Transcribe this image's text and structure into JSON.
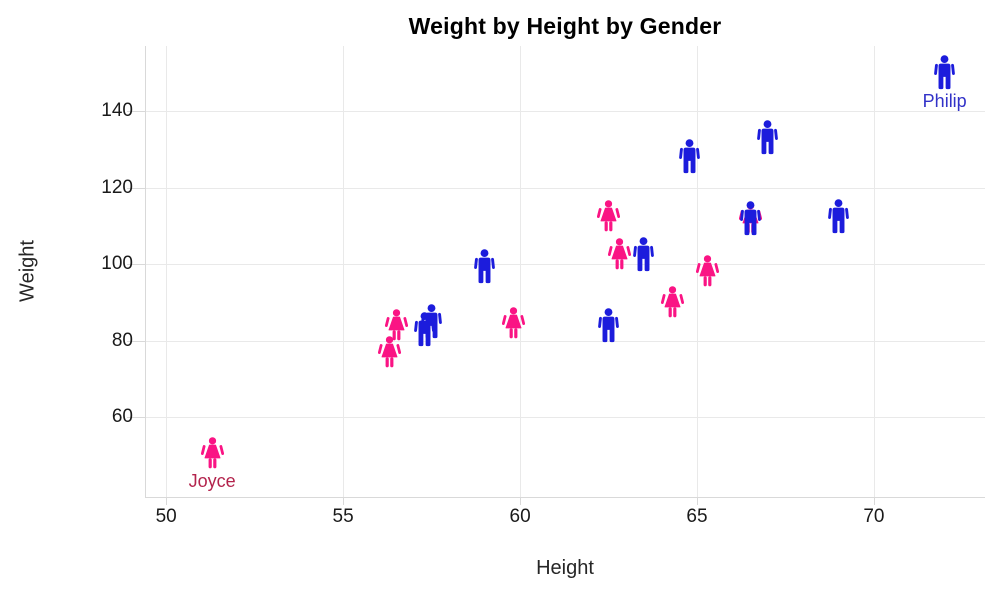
{
  "chart_data": {
    "type": "scatter",
    "title": "Weight by Height by Gender",
    "xlabel": "Height",
    "ylabel": "Weight",
    "x_ticks": [
      50,
      55,
      60,
      65,
      70
    ],
    "y_ticks": [
      60,
      80,
      100,
      120,
      140
    ],
    "xlim": [
      49.4,
      73.14
    ],
    "ylim": [
      39.1,
      157.0
    ],
    "grid": true,
    "legend_position": "none",
    "marker_style": "gender-pictogram",
    "colors": {
      "male": "#1c1cdc",
      "female": "#fa1484",
      "gridline": "#e9e9e9",
      "axis": "#d9d9d9",
      "tick_text": "#1a1a1a"
    },
    "annotation_colors": {
      "Joyce": "#b3234c",
      "Philip": "#3232c8"
    },
    "points": [
      {
        "gender": "M",
        "height": 69.0,
        "weight": 112.5
      },
      {
        "gender": "F",
        "height": 56.5,
        "weight": 84.0
      },
      {
        "gender": "F",
        "height": 65.3,
        "weight": 98.0
      },
      {
        "gender": "F",
        "height": 62.8,
        "weight": 102.5
      },
      {
        "gender": "M",
        "height": 63.5,
        "weight": 102.5
      },
      {
        "gender": "M",
        "height": 57.3,
        "weight": 83.0
      },
      {
        "gender": "F",
        "height": 59.8,
        "weight": 84.5
      },
      {
        "gender": "F",
        "height": 62.5,
        "weight": 112.5
      },
      {
        "gender": "M",
        "height": 62.5,
        "weight": 84.0
      },
      {
        "gender": "M",
        "height": 59.0,
        "weight": 99.5
      },
      {
        "gender": "F",
        "height": 51.3,
        "weight": 50.5,
        "label": "Joyce"
      },
      {
        "gender": "F",
        "height": 64.3,
        "weight": 90.0
      },
      {
        "gender": "F",
        "height": 56.3,
        "weight": 77.0
      },
      {
        "gender": "F",
        "height": 66.5,
        "weight": 112.0
      },
      {
        "gender": "M",
        "height": 72.0,
        "weight": 150.0,
        "label": "Philip"
      },
      {
        "gender": "M",
        "height": 64.8,
        "weight": 128.0
      },
      {
        "gender": "M",
        "height": 67.0,
        "weight": 133.0
      },
      {
        "gender": "M",
        "height": 57.5,
        "weight": 85.0
      },
      {
        "gender": "M",
        "height": 66.5,
        "weight": 112.0
      }
    ]
  }
}
